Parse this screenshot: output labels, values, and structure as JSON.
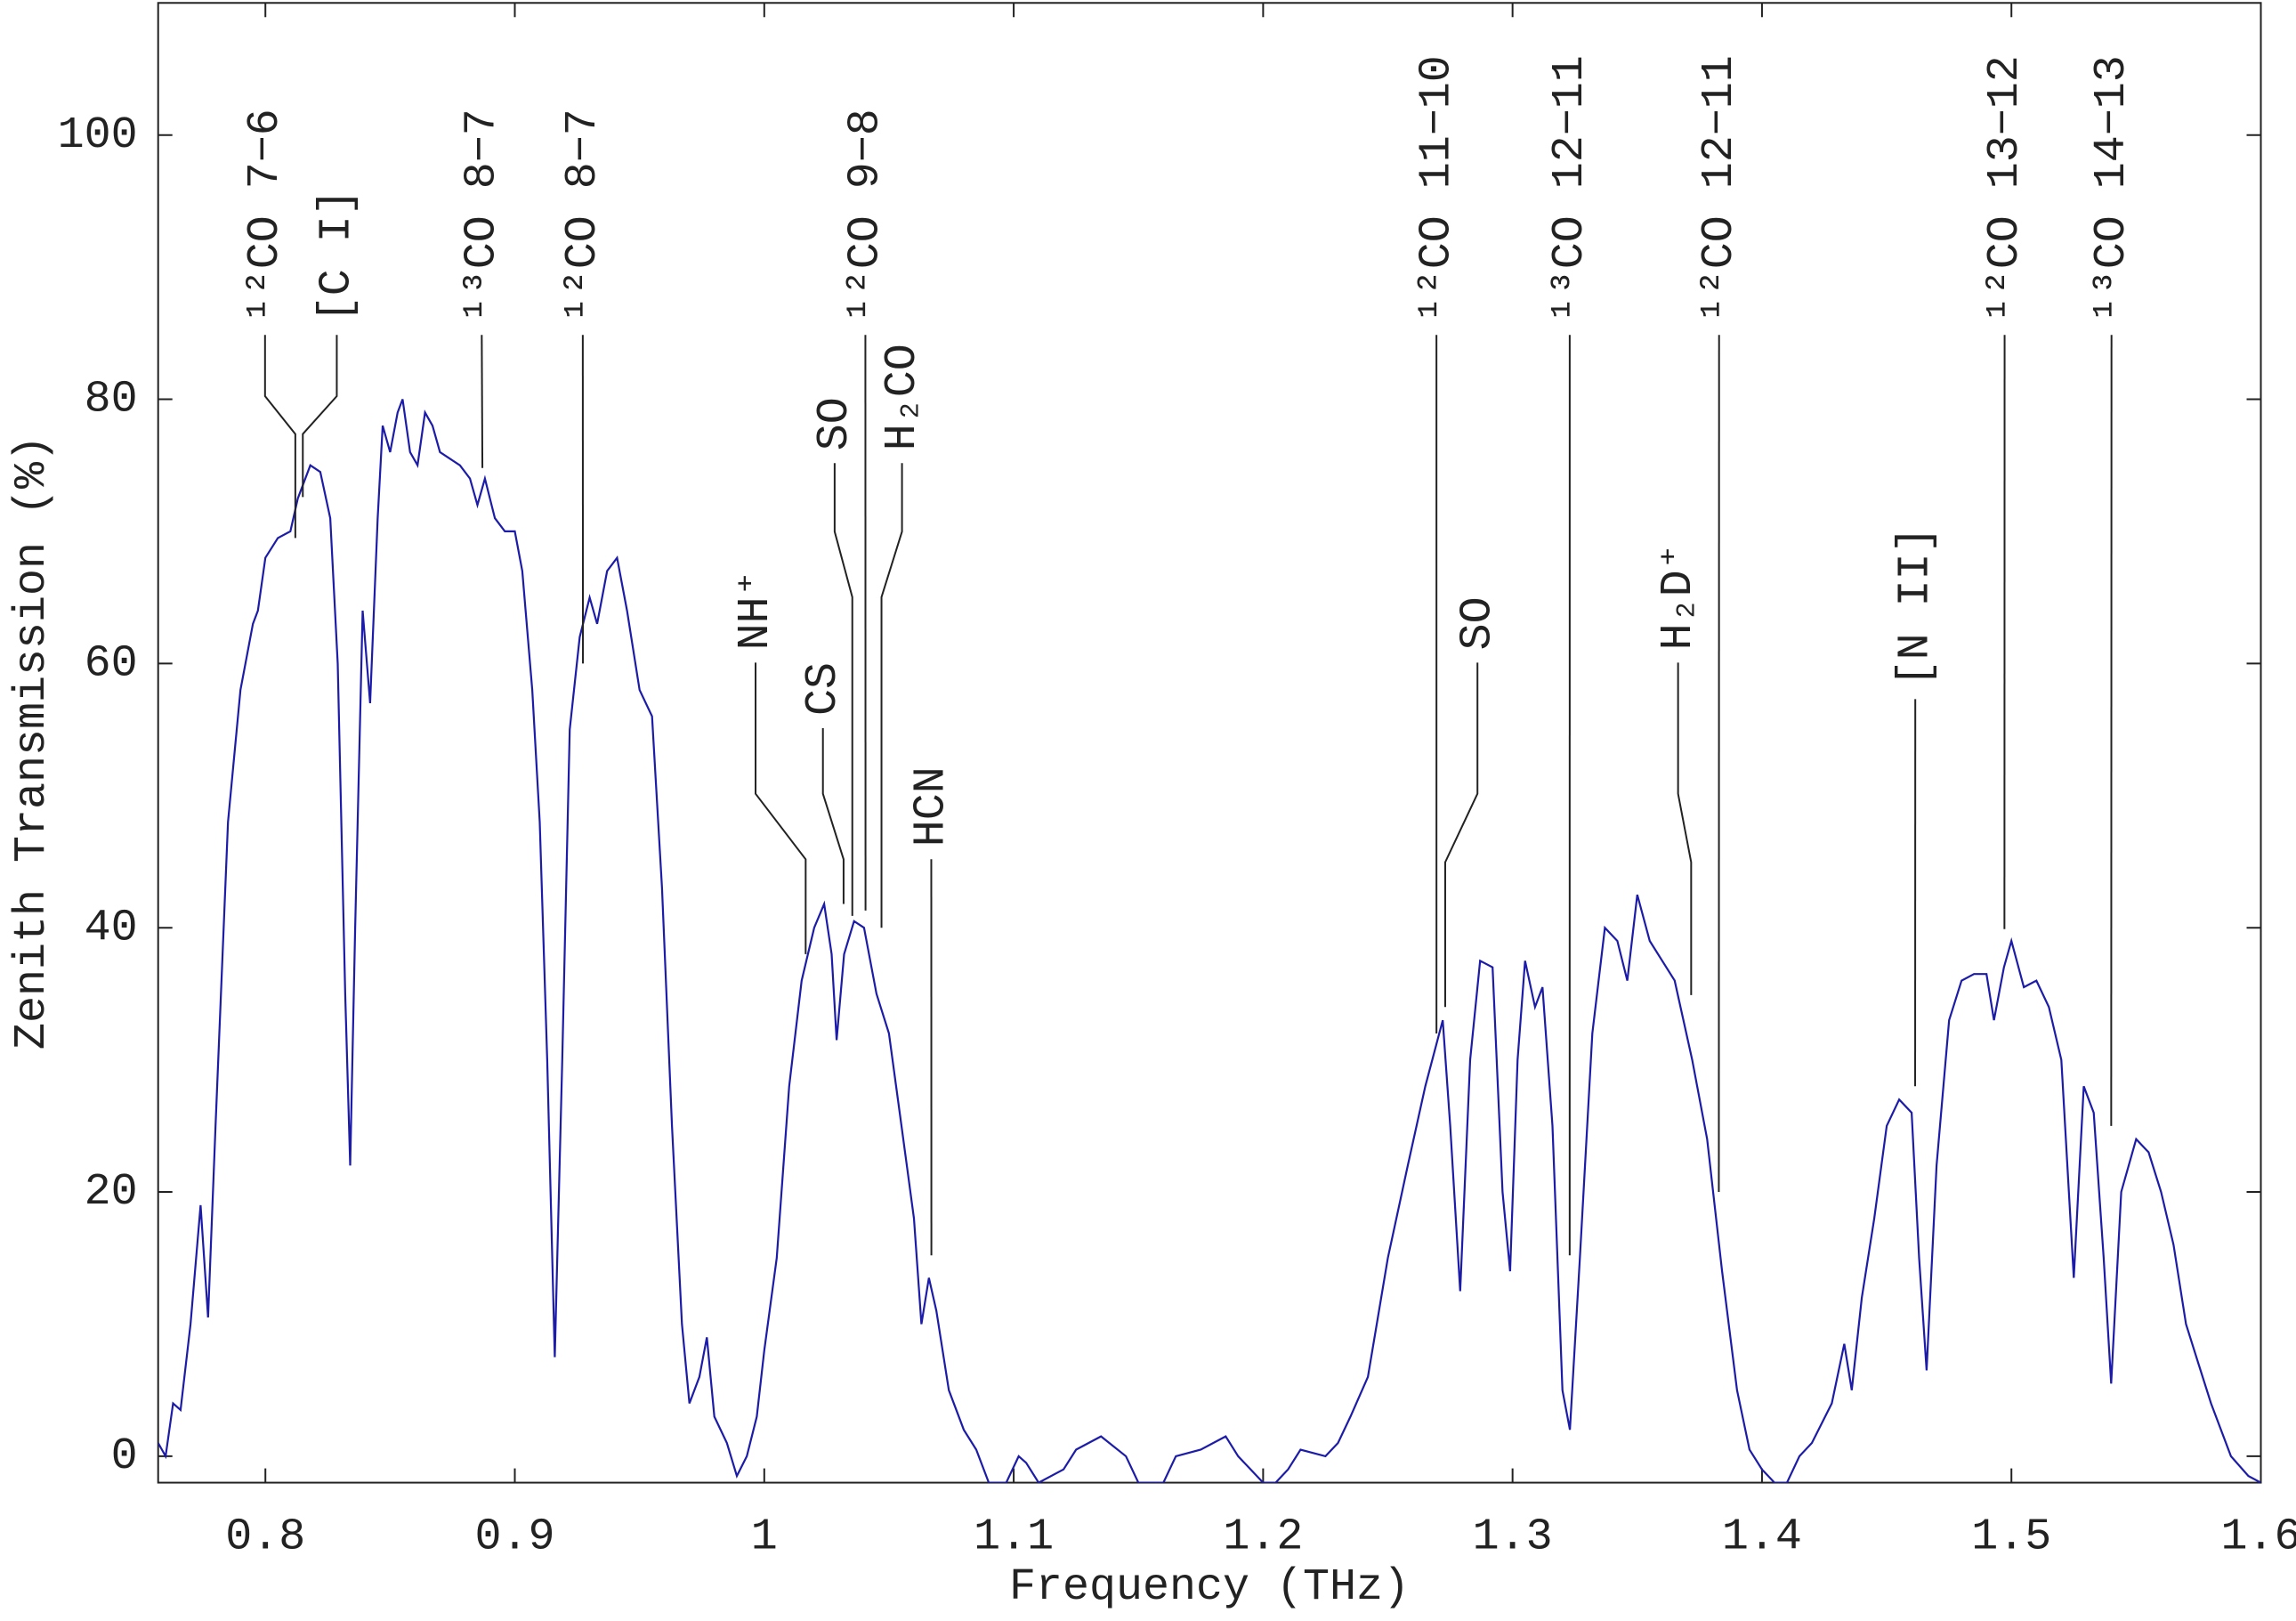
{
  "chart_data": {
    "type": "line",
    "xlabel": "Frequency (THz)",
    "ylabel": "Zenith Transmission (%)",
    "color": "#1c1ca8",
    "xlim": [
      0.757,
      1.6
    ],
    "ylim": [
      -2,
      110
    ],
    "xticks": [
      0.8,
      0.9,
      1,
      1.1,
      1.2,
      1.3,
      1.4,
      1.5,
      1.6
    ],
    "yticks": [
      0,
      20,
      40,
      60,
      80,
      100
    ],
    "grid": false,
    "x": [
      0.757,
      0.76,
      0.763,
      0.766,
      0.77,
      0.774,
      0.777,
      0.78,
      0.785,
      0.79,
      0.795,
      0.797,
      0.8,
      0.805,
      0.81,
      0.813,
      0.818,
      0.822,
      0.826,
      0.829,
      0.832,
      0.834,
      0.836,
      0.839,
      0.842,
      0.845,
      0.847,
      0.85,
      0.853,
      0.855,
      0.858,
      0.861,
      0.864,
      0.867,
      0.87,
      0.874,
      0.878,
      0.882,
      0.885,
      0.888,
      0.892,
      0.896,
      0.9,
      0.903,
      0.907,
      0.91,
      0.913,
      0.916,
      0.919,
      0.922,
      0.926,
      0.93,
      0.933,
      0.937,
      0.941,
      0.945,
      0.95,
      0.955,
      0.959,
      0.963,
      0.967,
      0.97,
      0.974,
      0.977,
      0.98,
      0.985,
      0.989,
      0.993,
      0.997,
      1.0,
      1.005,
      1.01,
      1.015,
      1.02,
      1.024,
      1.027,
      1.029,
      1.032,
      1.036,
      1.04,
      1.045,
      1.05,
      1.055,
      1.06,
      1.063,
      1.066,
      1.069,
      1.074,
      1.08,
      1.085,
      1.09,
      1.097,
      1.102,
      1.105,
      1.11,
      1.12,
      1.125,
      1.135,
      1.145,
      1.15,
      1.16,
      1.165,
      1.175,
      1.185,
      1.19,
      1.2,
      1.205,
      1.21,
      1.215,
      1.225,
      1.23,
      1.235,
      1.242,
      1.25,
      1.258,
      1.265,
      1.272,
      1.275,
      1.279,
      1.283,
      1.287,
      1.292,
      1.296,
      1.299,
      1.302,
      1.305,
      1.309,
      1.312,
      1.316,
      1.32,
      1.323,
      1.327,
      1.332,
      1.337,
      1.342,
      1.346,
      1.35,
      1.355,
      1.36,
      1.365,
      1.372,
      1.378,
      1.384,
      1.39,
      1.395,
      1.4,
      1.405,
      1.41,
      1.415,
      1.42,
      1.428,
      1.433,
      1.436,
      1.44,
      1.445,
      1.45,
      1.455,
      1.46,
      1.463,
      1.466,
      1.47,
      1.475,
      1.48,
      1.485,
      1.49,
      1.493,
      1.497,
      1.5,
      1.505,
      1.51,
      1.515,
      1.52,
      1.525,
      1.529,
      1.533,
      1.537,
      1.54,
      1.544,
      1.55,
      1.555,
      1.56,
      1.565,
      1.57,
      1.575,
      1.58,
      1.588,
      1.595,
      1.6
    ],
    "values": [
      1,
      0,
      4,
      3.5,
      10,
      19,
      10.5,
      25,
      48,
      58,
      63,
      64,
      68,
      69.5,
      70,
      72.5,
      75,
      74.5,
      71,
      60,
      35,
      22,
      40,
      64,
      57,
      71,
      78,
      76,
      79,
      80,
      76,
      75,
      79,
      78,
      76,
      75.5,
      75,
      74,
      72,
      74,
      71,
      70,
      70,
      67,
      58,
      48,
      30,
      7.5,
      30,
      55,
      62,
      65,
      63,
      67,
      68,
      64,
      58,
      56,
      43,
      25,
      10,
      4,
      6,
      9,
      3,
      1,
      -1.5,
      0,
      3,
      8,
      15,
      28,
      36,
      40,
      41.8,
      38,
      31.5,
      38,
      40.5,
      40,
      35,
      32,
      25,
      18,
      10,
      13.5,
      11,
      5,
      2,
      0.5,
      -2,
      -2,
      0,
      -0.5,
      -2,
      -1,
      0.5,
      1.5,
      0,
      -2,
      -2,
      0,
      0.5,
      1.5,
      0,
      -2,
      -2,
      -1,
      0.5,
      0,
      1,
      3,
      6,
      15,
      22,
      28,
      33,
      25,
      12.5,
      30,
      37.5,
      37,
      20,
      14,
      30,
      37.5,
      34,
      35.5,
      25,
      5,
      2,
      15,
      32,
      40,
      39,
      36,
      42.5,
      39,
      37.5,
      36,
      30,
      24,
      14,
      5,
      0.5,
      -1,
      -2,
      -2,
      0,
      1,
      4,
      8.5,
      5,
      12,
      18,
      25,
      27,
      26,
      15,
      6.5,
      22,
      33,
      36,
      36.5,
      36.5,
      33,
      37,
      39,
      35.5,
      36,
      34,
      30,
      13.5,
      28,
      26,
      15,
      5.5,
      20,
      24,
      23,
      20,
      16,
      10,
      7,
      4,
      0,
      -1.5,
      -2
    ],
    "annotations": [
      {
        "label": "¹²CO 7−6",
        "x": 0.812,
        "y": 69.5
      },
      {
        "label": "[C I]",
        "x": 0.815,
        "y": 72.6
      },
      {
        "label": "¹³CO 8−7",
        "x": 0.887,
        "y": 74.8
      },
      {
        "label": "¹²CO 8−7",
        "x": 0.9273,
        "y": 60
      },
      {
        "label": "NH⁺",
        "x": 1.0166,
        "y": 38
      },
      {
        "label": "CS",
        "x": 1.0318,
        "y": 41.8
      },
      {
        "label": "SO",
        "x": 1.0353,
        "y": 40.9
      },
      {
        "label": "¹²CO 9−8",
        "x": 1.0406,
        "y": 41.3
      },
      {
        "label": "H₂CO",
        "x": 1.047,
        "y": 40
      },
      {
        "label": "HCN",
        "x": 1.067,
        "y": 15.2
      },
      {
        "label": "¹²CO 11−10",
        "x": 1.2695,
        "y": 32
      },
      {
        "label": "SO",
        "x": 1.273,
        "y": 34
      },
      {
        "label": "¹³CO 12−11",
        "x": 1.3229,
        "y": 15.2
      },
      {
        "label": "H₂D⁺",
        "x": 1.3716,
        "y": 34.9
      },
      {
        "label": "¹²CO 12−11",
        "x": 1.3827,
        "y": 20
      },
      {
        "label": "[N II]",
        "x": 1.4614,
        "y": 28
      },
      {
        "label": "¹²CO 13−12",
        "x": 1.4972,
        "y": 39.9
      },
      {
        "label": "¹³CO 14−13",
        "x": 1.54,
        "y": 25
      }
    ]
  }
}
